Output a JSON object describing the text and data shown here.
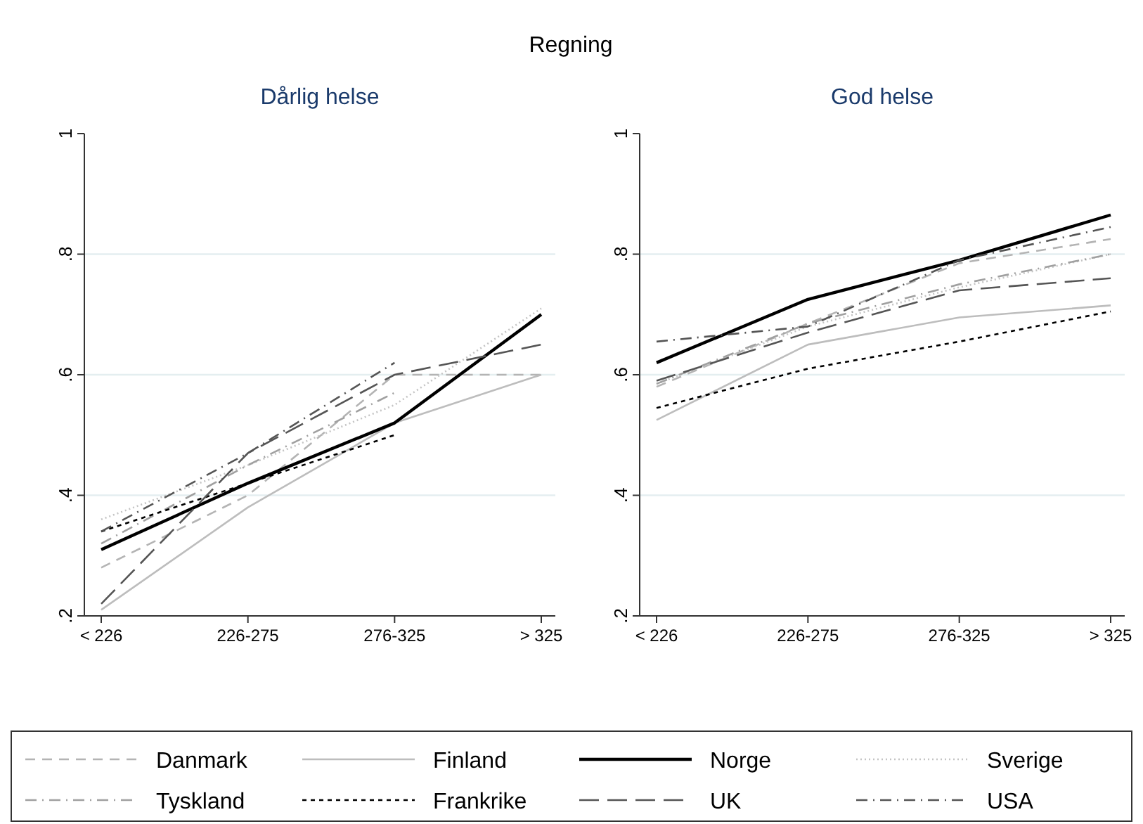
{
  "chart_data": [
    {
      "type": "line",
      "title": "Dårlig helse",
      "annotations": [
        "Regning"
      ],
      "categories": [
        "< 226",
        "226-275",
        "276-325",
        "> 325"
      ],
      "ylim": [
        0.2,
        1
      ],
      "yticks": [
        {
          "value": 0.2,
          "label": ".2"
        },
        {
          "value": 0.4,
          "label": ".4"
        },
        {
          "value": 0.6,
          "label": ".6"
        },
        {
          "value": 0.8,
          "label": ".8"
        },
        {
          "value": 1,
          "label": "1"
        }
      ],
      "grid": true,
      "legend": "bottom",
      "series": [
        {
          "name": "Danmark",
          "color": "#b4b4b4",
          "line_style": "dashed",
          "values": [
            0.28,
            0.4,
            0.6,
            0.6
          ]
        },
        {
          "name": "Finland",
          "color": "#bdbdbd",
          "line_style": "solid",
          "values": [
            0.21,
            0.38,
            0.52,
            0.6
          ]
        },
        {
          "name": "Norge",
          "color": "#000000",
          "line_style": "solid",
          "values": [
            0.31,
            0.42,
            0.52,
            0.7
          ]
        },
        {
          "name": "Sverige",
          "color": "#c4c4c4",
          "line_style": "dotted",
          "values": [
            0.36,
            0.45,
            0.55,
            0.71
          ]
        },
        {
          "name": "Tyskland",
          "color": "#a0a0a0",
          "line_style": "dashdot",
          "values": [
            0.32,
            0.45,
            0.57,
            null
          ]
        },
        {
          "name": "Frankrike",
          "color": "#000000",
          "line_style": "shortdash",
          "values": [
            0.34,
            0.42,
            0.5,
            null
          ]
        },
        {
          "name": "UK",
          "color": "#555555",
          "line_style": "longdash",
          "values": [
            0.22,
            0.47,
            0.6,
            0.65
          ]
        },
        {
          "name": "USA",
          "color": "#555555",
          "line_style": "dashdot",
          "values": [
            0.34,
            0.47,
            0.62,
            null
          ]
        }
      ]
    },
    {
      "type": "line",
      "title": "God helse",
      "categories": [
        "< 226",
        "226-275",
        "276-325",
        "> 325"
      ],
      "ylim": [
        0.2,
        1
      ],
      "yticks": [
        {
          "value": 0.2,
          "label": ".2"
        },
        {
          "value": 0.4,
          "label": ".4"
        },
        {
          "value": 0.6,
          "label": ".6"
        },
        {
          "value": 0.8,
          "label": ".8"
        },
        {
          "value": 1,
          "label": "1"
        }
      ],
      "grid": true,
      "series": [
        {
          "name": "Danmark",
          "color": "#b4b4b4",
          "line_style": "dashed",
          "values": [
            0.58,
            0.685,
            0.785,
            0.825
          ]
        },
        {
          "name": "Finland",
          "color": "#bdbdbd",
          "line_style": "solid",
          "values": [
            0.525,
            0.65,
            0.695,
            0.715
          ]
        },
        {
          "name": "Norge",
          "color": "#000000",
          "line_style": "solid",
          "values": [
            0.62,
            0.725,
            0.79,
            0.865
          ]
        },
        {
          "name": "Sverige",
          "color": "#c4c4c4",
          "line_style": "dotted",
          "values": [
            0.585,
            0.68,
            0.745,
            0.8
          ]
        },
        {
          "name": "Tyskland",
          "color": "#a0a0a0",
          "line_style": "dashdot",
          "values": [
            0.585,
            0.685,
            0.75,
            0.8
          ]
        },
        {
          "name": "Frankrike",
          "color": "#000000",
          "line_style": "shortdash",
          "values": [
            0.545,
            0.61,
            0.655,
            0.705
          ]
        },
        {
          "name": "UK",
          "color": "#555555",
          "line_style": "longdash",
          "values": [
            0.59,
            0.67,
            0.74,
            0.76
          ]
        },
        {
          "name": "USA",
          "color": "#555555",
          "line_style": "dashdot",
          "values": [
            0.655,
            0.68,
            0.79,
            0.845
          ]
        }
      ]
    }
  ]
}
